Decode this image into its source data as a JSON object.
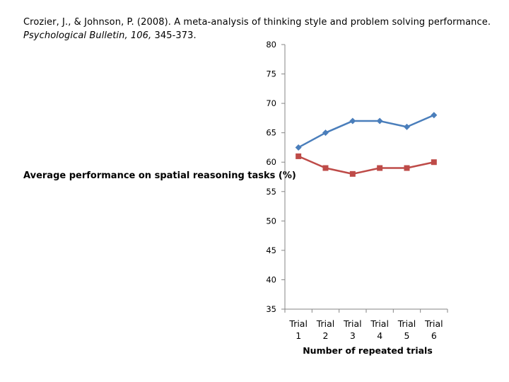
{
  "citation": {
    "line1": "Crozier, J., & Johnson, P. (2008). A meta-analysis of thinking style and problem solving performance.",
    "journal": "Psychological Bulletin, 106,",
    "pages": " 345-373."
  },
  "chart_data": {
    "type": "line",
    "title": "",
    "xlabel": "Number of repeated trials",
    "ylabel": "Average performance on spatial reasoning tasks (%)",
    "ylim": [
      35,
      80
    ],
    "yticks": [
      35,
      40,
      45,
      50,
      55,
      60,
      65,
      70,
      75,
      80
    ],
    "categories": [
      [
        "Trial",
        "1"
      ],
      [
        "Trial",
        "2"
      ],
      [
        "Trial",
        "3"
      ],
      [
        "Trial",
        "4"
      ],
      [
        "Trial",
        "5"
      ],
      [
        "Trial",
        "6"
      ]
    ],
    "grid": false,
    "legend": "none",
    "series": [
      {
        "values": [
          62.5,
          65,
          67,
          67,
          66,
          68
        ],
        "color": "#4a7ebb",
        "marker": "diamond"
      },
      {
        "values": [
          61,
          59,
          58,
          59,
          59,
          60
        ],
        "color": "#be4b48",
        "marker": "square"
      }
    ]
  }
}
